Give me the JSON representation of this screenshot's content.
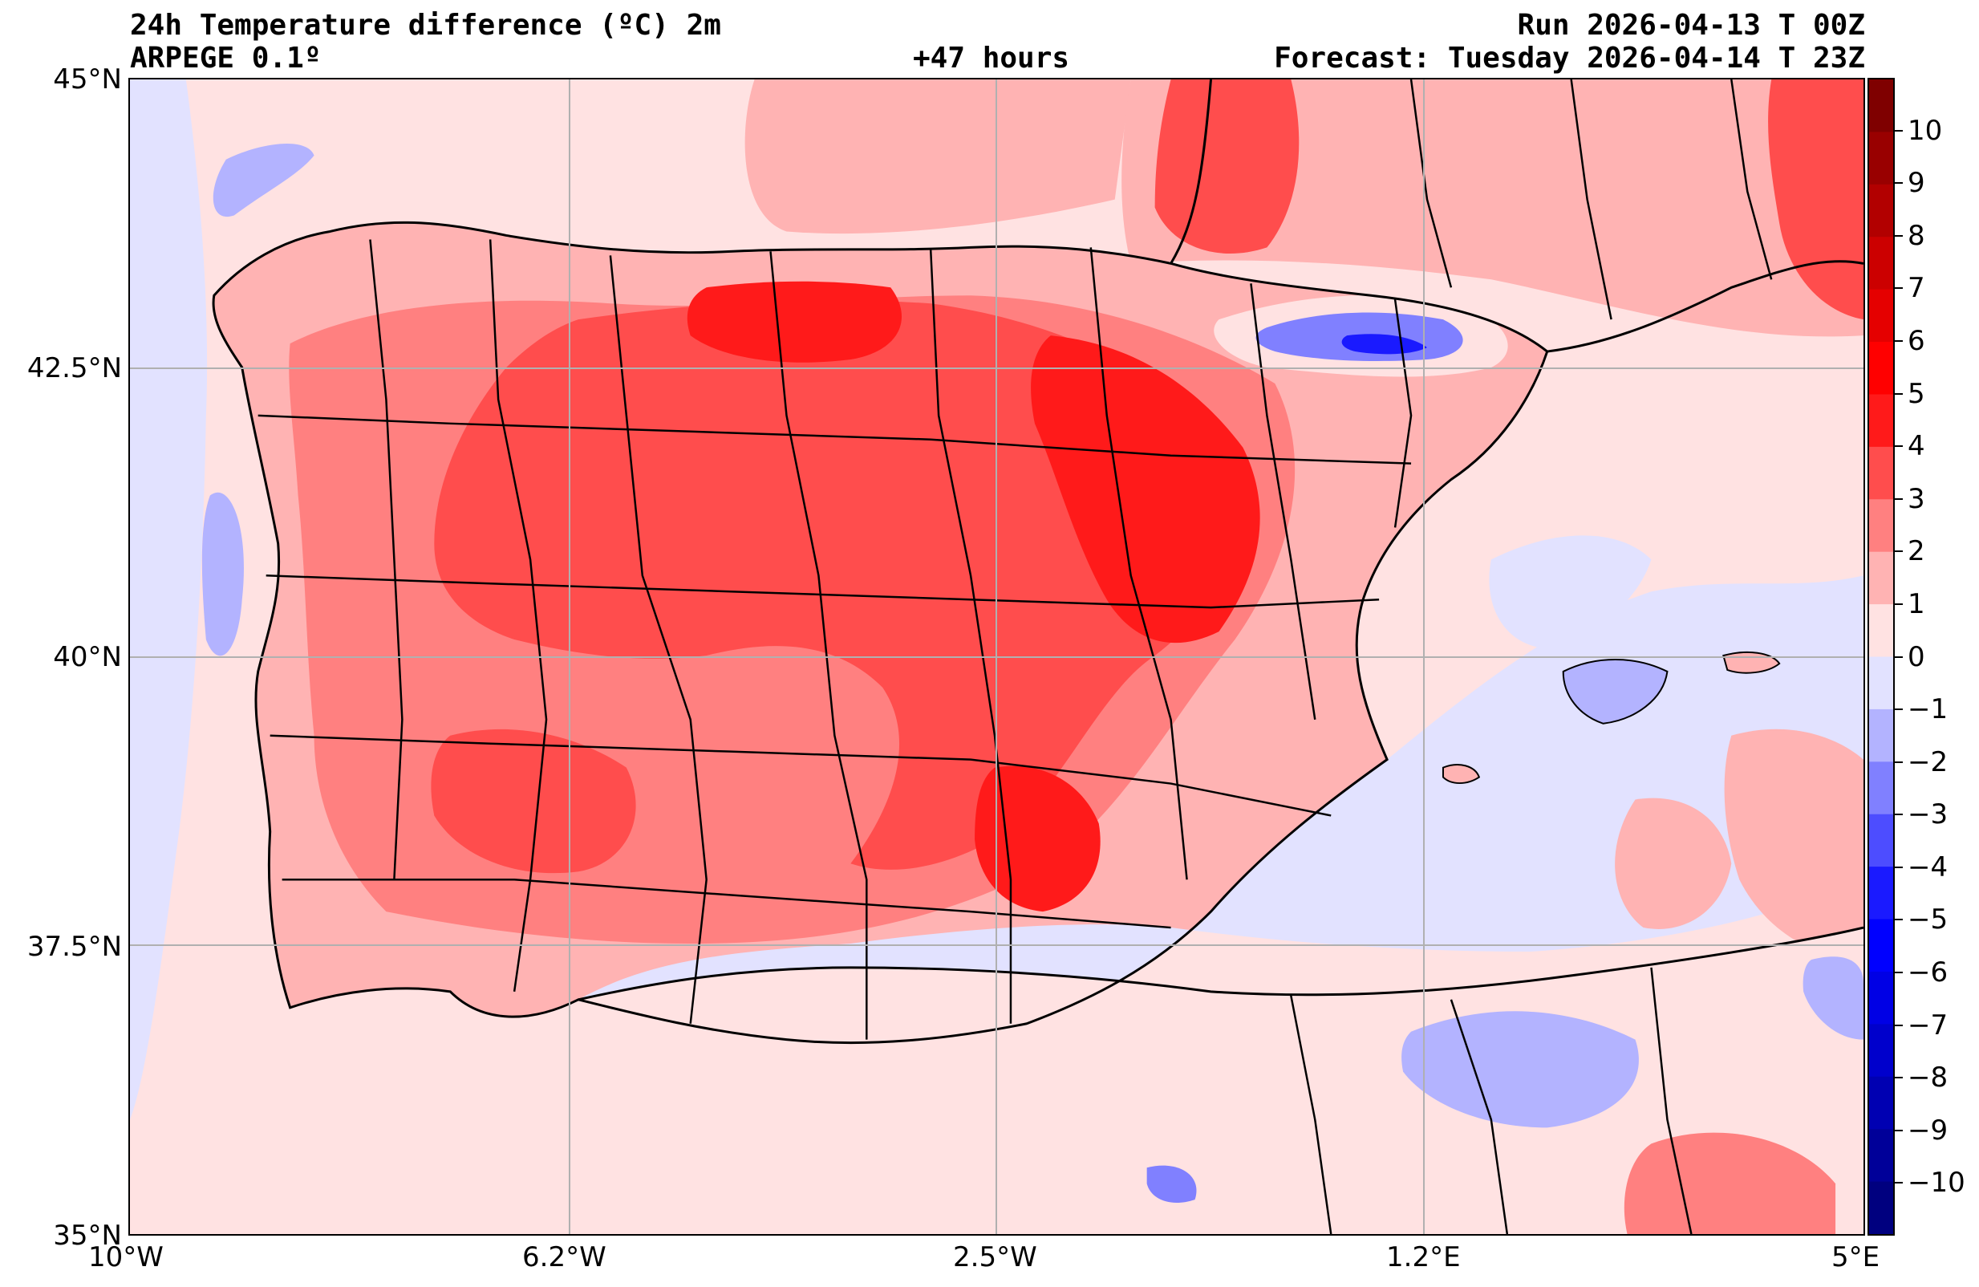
{
  "header": {
    "title": "24h Temperature difference (ºC) 2m",
    "model": "ARPEGE 0.1º",
    "lead_time": "+47 hours",
    "run": "Run 2026-04-13 T 00Z",
    "forecast": "Forecast: Tuesday 2026-04-14 T 23Z"
  },
  "map": {
    "region": "Iberian Peninsula and western Mediterranean",
    "lon_range": [
      -10,
      5
    ],
    "lat_range": [
      35,
      45
    ],
    "lat_ticks": [
      {
        "value": 45,
        "label": "45°N"
      },
      {
        "value": 42.5,
        "label": "42.5°N"
      },
      {
        "value": 40,
        "label": "40°N"
      },
      {
        "value": 37.5,
        "label": "37.5°N"
      },
      {
        "value": 35,
        "label": "35°N"
      }
    ],
    "lon_ticks": [
      {
        "value": -10,
        "label": "10°W"
      },
      {
        "value": -6.2,
        "label": "6.2°W"
      },
      {
        "value": -2.5,
        "label": "2.5°W"
      },
      {
        "value": 1.2,
        "label": "1.2°E"
      },
      {
        "value": 5,
        "label": "5°E"
      }
    ],
    "gridlines": true
  },
  "colorbar": {
    "min": -11,
    "max": 11,
    "labels": [
      "10",
      "9",
      "8",
      "7",
      "6",
      "5",
      "4",
      "3",
      "2",
      "1",
      "0",
      "−1",
      "−2",
      "−3",
      "−4",
      "−5",
      "−6",
      "−7",
      "−8",
      "−9",
      "−10"
    ],
    "label_values": [
      10,
      9,
      8,
      7,
      6,
      5,
      4,
      3,
      2,
      1,
      0,
      -1,
      -2,
      -3,
      -4,
      -5,
      -6,
      -7,
      -8,
      -9,
      -10
    ],
    "colors_top_to_bottom": [
      "#7f0000",
      "#990000",
      "#b20000",
      "#cc0000",
      "#e50000",
      "#ff0000",
      "#ff1a1a",
      "#ff4d4d",
      "#ff8080",
      "#ffb3b3",
      "#ffe2e2",
      "#e2e2ff",
      "#b3b3ff",
      "#8080ff",
      "#4d4dff",
      "#1a1aff",
      "#0000ff",
      "#0000e5",
      "#0000cc",
      "#0000b2",
      "#000099",
      "#00007f"
    ]
  }
}
